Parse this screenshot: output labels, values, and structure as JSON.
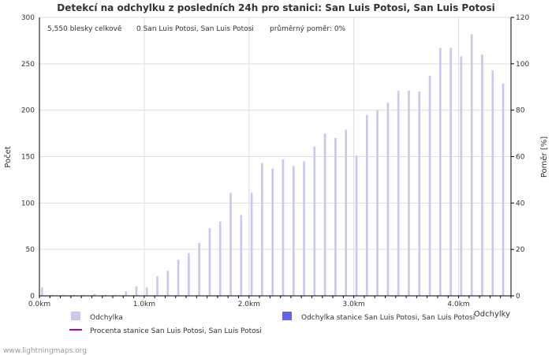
{
  "chart_data": {
    "type": "bar",
    "title": "Detekcí na odchylku z posledních 24h pro stanici: San Luis Potosi, San Luis Potosi",
    "stats": {
      "total": "5,550 blesky celkově",
      "station": "0 San Luis Potosi, San Luis Potosi",
      "ratio": "průměrný poměr: 0%"
    },
    "xlabel": "Odchylky",
    "ylabel": "Počet",
    "y2label": "Poměr [%]",
    "xlim": [
      0,
      4.5
    ],
    "ylim": [
      0,
      300
    ],
    "y2lim": [
      0,
      120
    ],
    "x_ticks": [
      0,
      1,
      2,
      3,
      4
    ],
    "x_tick_labels": [
      "0.0km",
      "1.0km",
      "2.0km",
      "3.0km",
      "4.0km"
    ],
    "y_ticks": [
      0,
      50,
      100,
      150,
      200,
      250,
      300
    ],
    "y2_ticks": [
      0,
      20,
      40,
      60,
      80,
      100,
      120
    ],
    "bar_width_km": 0.02,
    "series": [
      {
        "name": "Odchylka",
        "color": "#c8c8f0",
        "x": [
          0.0,
          0.1,
          0.2,
          0.3,
          0.4,
          0.5,
          0.6,
          0.7,
          0.8,
          0.9,
          1.0,
          1.1,
          1.2,
          1.3,
          1.4,
          1.5,
          1.6,
          1.7,
          1.8,
          1.9,
          2.0,
          2.1,
          2.2,
          2.3,
          2.4,
          2.5,
          2.6,
          2.7,
          2.8,
          2.9,
          3.0,
          3.1,
          3.2,
          3.3,
          3.4,
          3.5,
          3.6,
          3.7,
          3.8,
          3.9,
          4.0,
          4.1,
          4.2,
          4.3,
          4.4
        ],
        "values": [
          9,
          1,
          1,
          1,
          1,
          2,
          1,
          1,
          5,
          10,
          9,
          21,
          27,
          39,
          46,
          57,
          73,
          80,
          111,
          87,
          111,
          143,
          137,
          147,
          140,
          145,
          161,
          175,
          170,
          179,
          151,
          195,
          200,
          208,
          221,
          221,
          220,
          237,
          267,
          267,
          258,
          282,
          260,
          243,
          229
        ]
      },
      {
        "name": "Odchylka stanice San Luis Potosi, San Luis Potosi",
        "color": "#6464f0",
        "values": []
      },
      {
        "name": "Procenta stanice San Luis Potosi, San Luis Potosi",
        "color": "#b400c8",
        "values": []
      }
    ]
  },
  "watermark": "www.lightningmaps.org",
  "colors": {
    "grid": "#dddddd",
    "axis": "#000000",
    "text": "#333333"
  }
}
